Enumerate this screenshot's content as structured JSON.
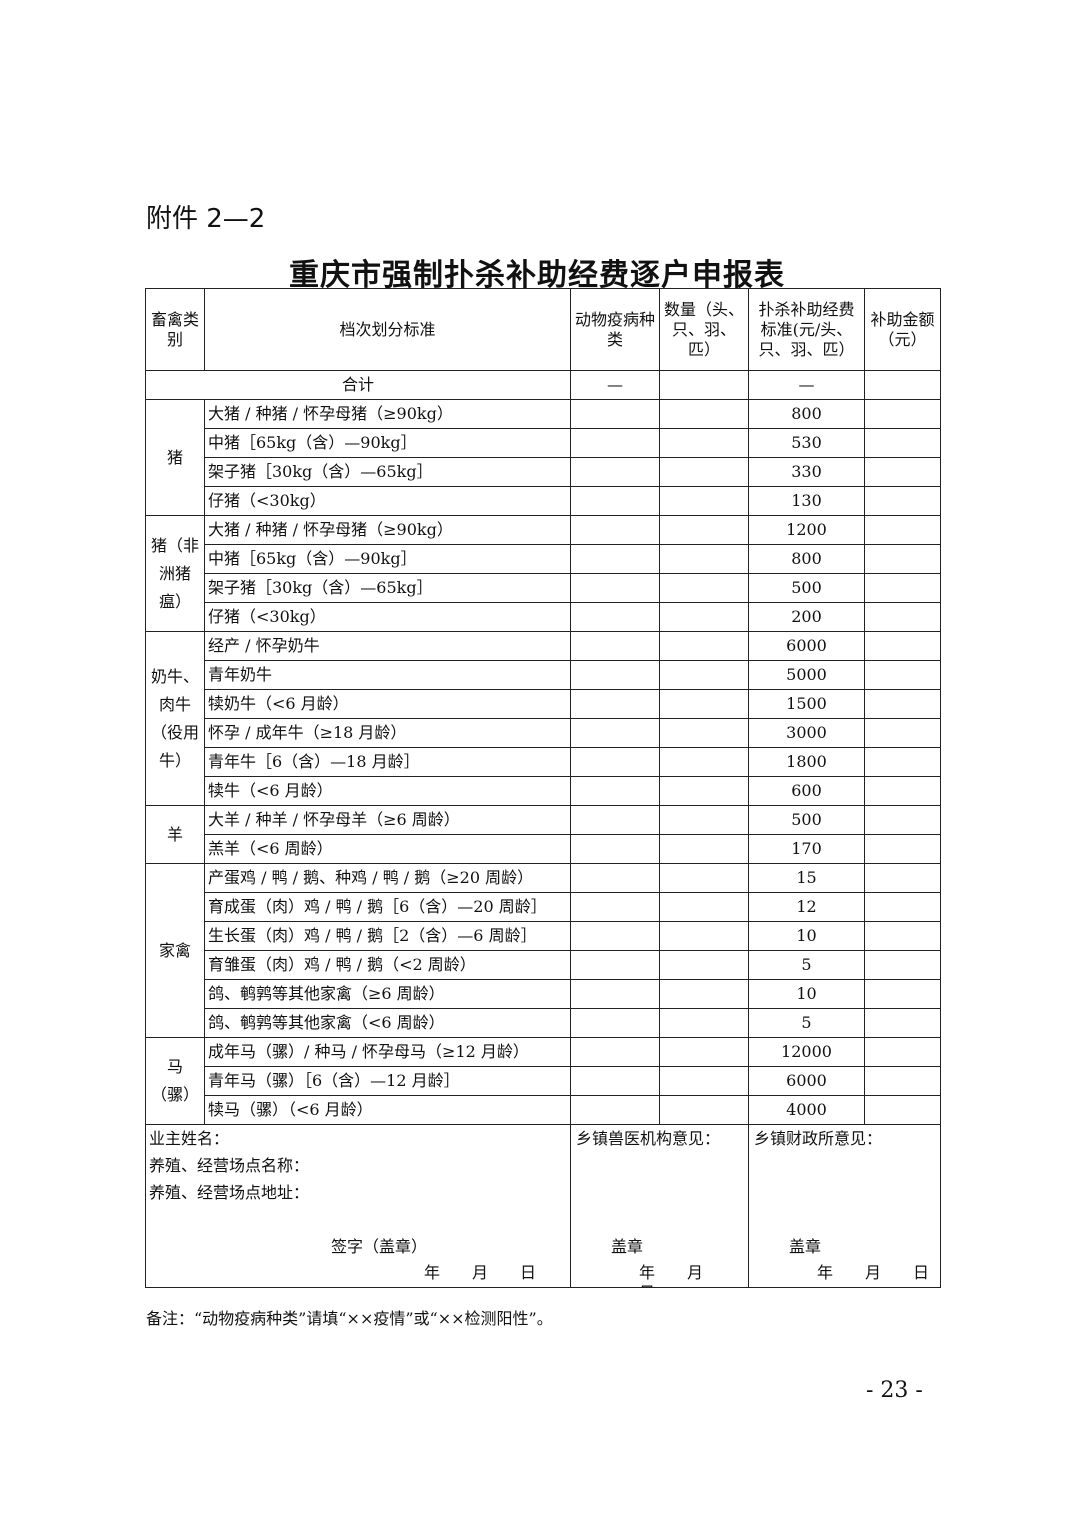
{
  "attachment": "附件 2—2",
  "title": "重庆市强制扑杀补助经费逐户申报表",
  "headers": {
    "category": "畜禽类别",
    "standard": "档次划分标准",
    "disease": "动物疫病种类",
    "quantity": "数量（头、只、羽、匹）",
    "rate": "扑杀补助经费标准(元/头、只、羽、匹）",
    "amount": "补助金额（元）"
  },
  "total": {
    "label": "合计",
    "disease": "—",
    "rate": "—"
  },
  "groups": [
    {
      "category": "猪",
      "rows": [
        [
          "大猪 / 种猪 / 怀孕母猪（≥90kg）",
          "800"
        ],
        [
          "中猪［65kg（含）—90kg］",
          "530"
        ],
        [
          "架子猪［30kg（含）—65kg］",
          "330"
        ],
        [
          "仔猪（<30kg）",
          "130"
        ]
      ]
    },
    {
      "category": "猪（非洲猪瘟）",
      "rows": [
        [
          "大猪 / 种猪 / 怀孕母猪（≥90kg）",
          "1200"
        ],
        [
          "中猪［65kg（含）—90kg］",
          "800"
        ],
        [
          "架子猪［30kg（含）—65kg］",
          "500"
        ],
        [
          "仔猪（<30kg）",
          "200"
        ]
      ]
    },
    {
      "category": "奶牛、肉牛（役用牛）",
      "rows": [
        [
          "经产 / 怀孕奶牛",
          "6000"
        ],
        [
          "青年奶牛",
          "5000"
        ],
        [
          "犊奶牛（<6 月龄）",
          "1500"
        ],
        [
          "怀孕 / 成年牛（≥18 月龄）",
          "3000"
        ],
        [
          "青年牛［6（含）—18 月龄］",
          "1800"
        ],
        [
          "犊牛（<6 月龄）",
          "600"
        ]
      ]
    },
    {
      "category": "羊",
      "rows": [
        [
          "大羊 / 种羊 / 怀孕母羊（≥6 周龄）",
          "500"
        ],
        [
          "羔羊（<6 周龄）",
          "170"
        ]
      ]
    },
    {
      "category": "家禽",
      "rows": [
        [
          "产蛋鸡 / 鸭 / 鹅、种鸡 / 鸭 / 鹅（≥20 周龄）",
          "15"
        ],
        [
          "育成蛋（肉）鸡 / 鸭 / 鹅［6（含）—20 周龄］",
          "12"
        ],
        [
          "生长蛋（肉）鸡 / 鸭 / 鹅［2（含）—6 周龄］",
          "10"
        ],
        [
          "育雏蛋（肉）鸡 / 鸭 / 鹅（<2 周龄）",
          "5"
        ],
        [
          "鸽、鹌鹑等其他家禽（≥6 周龄）",
          "10"
        ],
        [
          "鸽、鹌鹑等其他家禽（<6 周龄）",
          "5"
        ]
      ]
    },
    {
      "category": "马（骡）",
      "rows": [
        [
          "成年马（骡）/ 种马 / 怀孕母马（≥12 月龄）",
          "12000"
        ],
        [
          "青年马（骡）［6（含）—12 月龄］",
          "6000"
        ],
        [
          "犊马（骡）（<6 月龄）",
          "4000"
        ]
      ]
    }
  ],
  "footer": {
    "owner": "业主姓名：",
    "site_name": "养殖、经营场点名称：",
    "site_addr": "养殖、经营场点地址：",
    "sign": "签字（盖章）",
    "date": "年　　月　　日",
    "vet": "乡镇兽医机构意见：",
    "finance": "乡镇财政所意见：",
    "stamp": "盖章"
  },
  "note": "备注：“动物疫病种类”请填“××疫情”或“××检测阳性”。",
  "page_number": "- 23 -"
}
